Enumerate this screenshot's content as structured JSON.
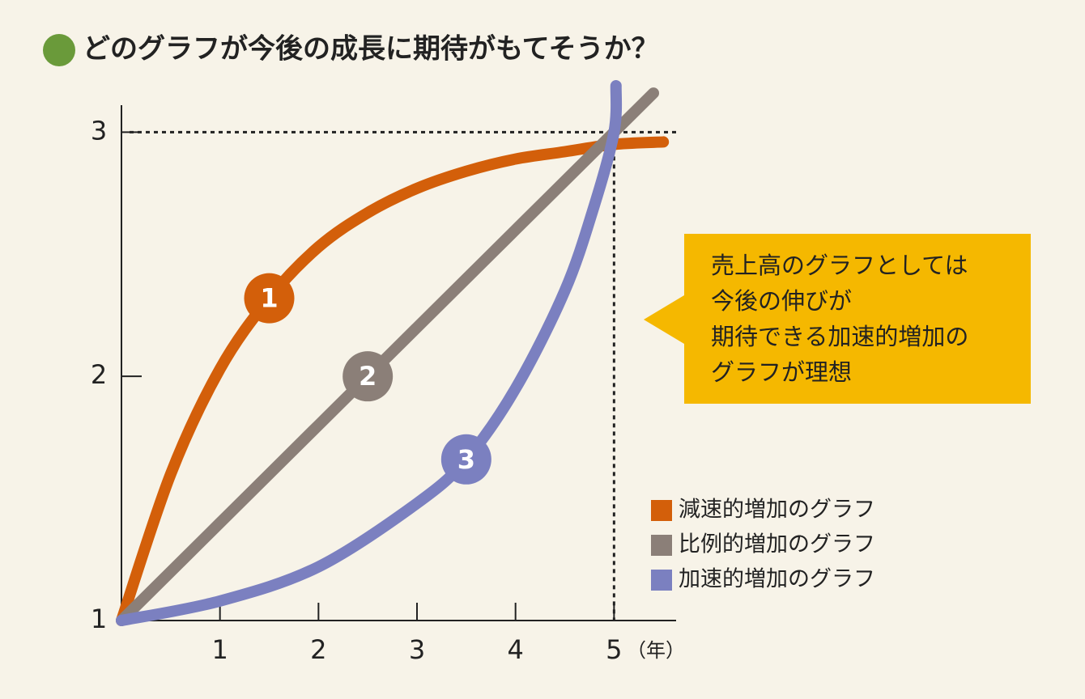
{
  "chart_data": {
    "type": "line",
    "title": "どのグラフが今後の成長に期待がもてそうか？",
    "x_unit": "（年）",
    "xlim": [
      0,
      5.63
    ],
    "ylim": [
      1,
      3.2
    ],
    "xticks": [
      1,
      2,
      3,
      4,
      5
    ],
    "yticks": [
      1,
      2,
      3
    ],
    "series": [
      {
        "name": "減速的増加のグラフ",
        "color": "#d35f0a",
        "marker_label": "1",
        "x": [
          0,
          0.5,
          1,
          1.5,
          2,
          2.5,
          3,
          3.5,
          4,
          4.5,
          5,
          5.5
        ],
        "values": [
          1,
          1.6,
          2.03,
          2.32,
          2.53,
          2.67,
          2.77,
          2.84,
          2.89,
          2.92,
          2.95,
          2.96
        ]
      },
      {
        "name": "比例的増加のグラフ",
        "color": "#8b7f78",
        "marker_label": "2",
        "x": [
          0,
          1,
          2,
          2.5,
          3,
          4,
          5,
          5.4
        ],
        "values": [
          1,
          1.4,
          1.8,
          2.0,
          2.2,
          2.6,
          3.0,
          3.16
        ]
      },
      {
        "name": "加速的増加のグラフ",
        "color": "#7b80c0",
        "marker_label": "3",
        "x": [
          0,
          1,
          2,
          3,
          3.5,
          4,
          4.5,
          4.8,
          5,
          5.02
        ],
        "values": [
          1,
          1.08,
          1.22,
          1.48,
          1.66,
          1.95,
          2.35,
          2.7,
          3.0,
          3.19
        ]
      }
    ],
    "callout": [
      "売上高のグラフとしては",
      "今後の伸びが",
      "期待できる加速的増加の",
      "グラフが理想"
    ]
  }
}
